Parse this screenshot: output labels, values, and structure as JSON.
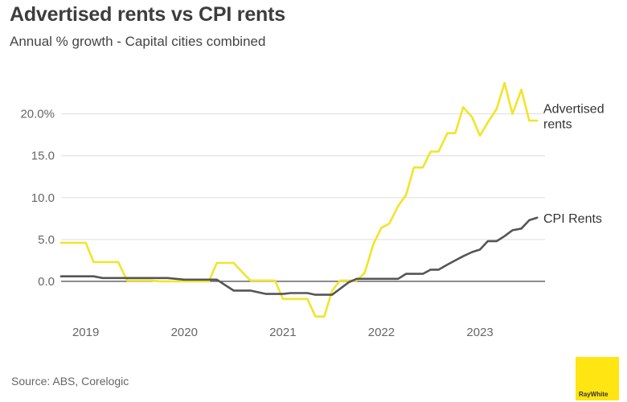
{
  "title": "Advertised rents vs CPI rents",
  "subtitle": "Annual % growth - Capital cities combined",
  "source": "Source: ABS, Corelogic",
  "logo": {
    "text": "RayWhite"
  },
  "colors": {
    "advertised": "#f2e42a",
    "cpi": "#555555",
    "grid": "#dddddd",
    "zero_axis": "#333333",
    "logo_bg": "#ffe512"
  },
  "chart_data": {
    "type": "line",
    "title": "Advertised rents vs CPI rents",
    "subtitle": "Annual % growth - Capital cities combined",
    "xlabel": "",
    "ylabel": "",
    "x_range": [
      2018.75,
      2023.66
    ],
    "ylim": [
      -5,
      24
    ],
    "y_ticks": [
      0,
      5,
      10,
      15,
      20
    ],
    "y_tick_labels": [
      "0.0",
      "5.0",
      "10.0",
      "15.0",
      "20.0%"
    ],
    "x_ticks": [
      2019,
      2020,
      2021,
      2022,
      2023
    ],
    "x_tick_labels": [
      "2019",
      "2020",
      "2021",
      "2022",
      "2023"
    ],
    "grid": "horizontal",
    "legend": "labels at line ends (right)",
    "series": [
      {
        "name": "Advertised rents",
        "name_lines": [
          "Advertised",
          "rents"
        ],
        "color": "#f2e42a",
        "x": [
          2018.75,
          2018.83,
          2018.92,
          2019.0,
          2019.08,
          2019.17,
          2019.25,
          2019.33,
          2019.42,
          2019.5,
          2019.58,
          2019.67,
          2019.75,
          2019.83,
          2019.92,
          2020.0,
          2020.08,
          2020.17,
          2020.25,
          2020.33,
          2020.42,
          2020.5,
          2020.58,
          2020.67,
          2020.75,
          2020.83,
          2020.92,
          2021.0,
          2021.08,
          2021.17,
          2021.25,
          2021.33,
          2021.42,
          2021.5,
          2021.58,
          2021.67,
          2021.75,
          2021.83,
          2021.92,
          2022.0,
          2022.08,
          2022.17,
          2022.25,
          2022.33,
          2022.42,
          2022.5,
          2022.58,
          2022.67,
          2022.75,
          2022.83,
          2022.92,
          2023.0,
          2023.08,
          2023.17,
          2023.25,
          2023.33,
          2023.42,
          2023.5,
          2023.58
        ],
        "values": [
          4.6,
          4.6,
          4.6,
          4.6,
          2.3,
          2.3,
          2.3,
          2.3,
          0.1,
          0.1,
          0.1,
          0.1,
          0.0,
          0.0,
          0.0,
          0.0,
          0.0,
          0.0,
          0.0,
          2.2,
          2.2,
          2.2,
          1.2,
          0.1,
          0.1,
          0.1,
          0.1,
          -2.1,
          -2.1,
          -2.1,
          -2.1,
          -4.2,
          -4.2,
          -1.1,
          0.1,
          0.1,
          0.1,
          1.0,
          4.5,
          6.4,
          6.9,
          9.0,
          10.3,
          13.6,
          13.6,
          15.5,
          15.5,
          17.7,
          17.7,
          20.8,
          19.6,
          17.4,
          19.0,
          20.6,
          23.7,
          20.0,
          22.9,
          19.2,
          19.2
        ],
        "end_x": 2023.58
      },
      {
        "name": "CPI Rents",
        "name_lines": [
          "CPI Rents"
        ],
        "color": "#555555",
        "x": [
          2018.75,
          2019.0,
          2019.08,
          2019.17,
          2019.5,
          2019.75,
          2019.83,
          2020.0,
          2020.25,
          2020.33,
          2020.5,
          2020.58,
          2020.67,
          2020.83,
          2020.92,
          2021.0,
          2021.08,
          2021.17,
          2021.25,
          2021.33,
          2021.42,
          2021.5,
          2021.67,
          2021.75,
          2021.83,
          2022.0,
          2022.08,
          2022.17,
          2022.25,
          2022.33,
          2022.42,
          2022.5,
          2022.58,
          2022.67,
          2022.75,
          2022.83,
          2022.92,
          2023.0,
          2023.08,
          2023.17,
          2023.25,
          2023.33,
          2023.42,
          2023.5,
          2023.58
        ],
        "values": [
          0.6,
          0.6,
          0.6,
          0.4,
          0.4,
          0.4,
          0.4,
          0.2,
          0.2,
          0.2,
          -1.1,
          -1.1,
          -1.1,
          -1.5,
          -1.5,
          -1.5,
          -1.4,
          -1.4,
          -1.4,
          -1.6,
          -1.6,
          -1.6,
          -0.1,
          0.3,
          0.3,
          0.3,
          0.3,
          0.3,
          0.9,
          0.9,
          0.9,
          1.4,
          1.4,
          2.0,
          2.5,
          3.0,
          3.5,
          3.8,
          4.8,
          4.8,
          5.4,
          6.1,
          6.3,
          7.3,
          7.6
        ]
      }
    ]
  }
}
